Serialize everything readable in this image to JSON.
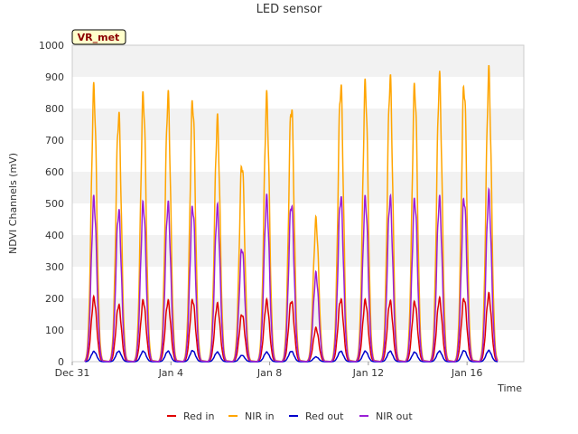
{
  "chart_data": {
    "type": "line",
    "title": "LED sensor",
    "xlabel": "Time",
    "ylabel": "NDVI Channels (mV)",
    "ylim": [
      0,
      1000
    ],
    "xlim": [
      0,
      18.3
    ],
    "yticks": [
      0,
      100,
      200,
      300,
      400,
      500,
      600,
      700,
      800,
      900,
      1000
    ],
    "xticks": [
      {
        "day": 0,
        "label": "Dec 31"
      },
      {
        "day": 4,
        "label": "Jan 4"
      },
      {
        "day": 8,
        "label": "Jan 8"
      },
      {
        "day": 12,
        "label": "Jan 12"
      },
      {
        "day": 16,
        "label": "Jan 16"
      }
    ],
    "grid": "horizontal bands",
    "legend_position": "bottom",
    "annotation": "VR_met",
    "x_unit": "days since Dec 31",
    "daily_peak_day": [
      0.88,
      1.88,
      2.88,
      3.88,
      4.88,
      5.88,
      6.88,
      7.88,
      8.88,
      9.88,
      10.88,
      11.88,
      12.88,
      13.88,
      14.88,
      15.88,
      16.88
    ],
    "series": [
      {
        "name": "Red in",
        "color": "#e00000",
        "peaks": [
          200,
          178,
          192,
          190,
          195,
          180,
          150,
          190,
          193,
          105,
          197,
          192,
          190,
          188,
          197,
          200,
          210
        ]
      },
      {
        "name": "NIR in",
        "color": "#ffa500",
        "peaks": [
          855,
          778,
          837,
          835,
          822,
          757,
          627,
          825,
          810,
          443,
          872,
          870,
          890,
          868,
          890,
          873,
          903
        ]
      },
      {
        "name": "Red out",
        "color": "#0000cc",
        "peaks": [
          32,
          33,
          33,
          33,
          35,
          30,
          20,
          30,
          33,
          15,
          33,
          33,
          33,
          30,
          33,
          35,
          35
        ]
      },
      {
        "name": "NIR out",
        "color": "#9a1fd6",
        "peaks": [
          510,
          475,
          497,
          495,
          490,
          482,
          360,
          510,
          500,
          275,
          520,
          512,
          515,
          510,
          510,
          517,
          525
        ]
      }
    ]
  }
}
